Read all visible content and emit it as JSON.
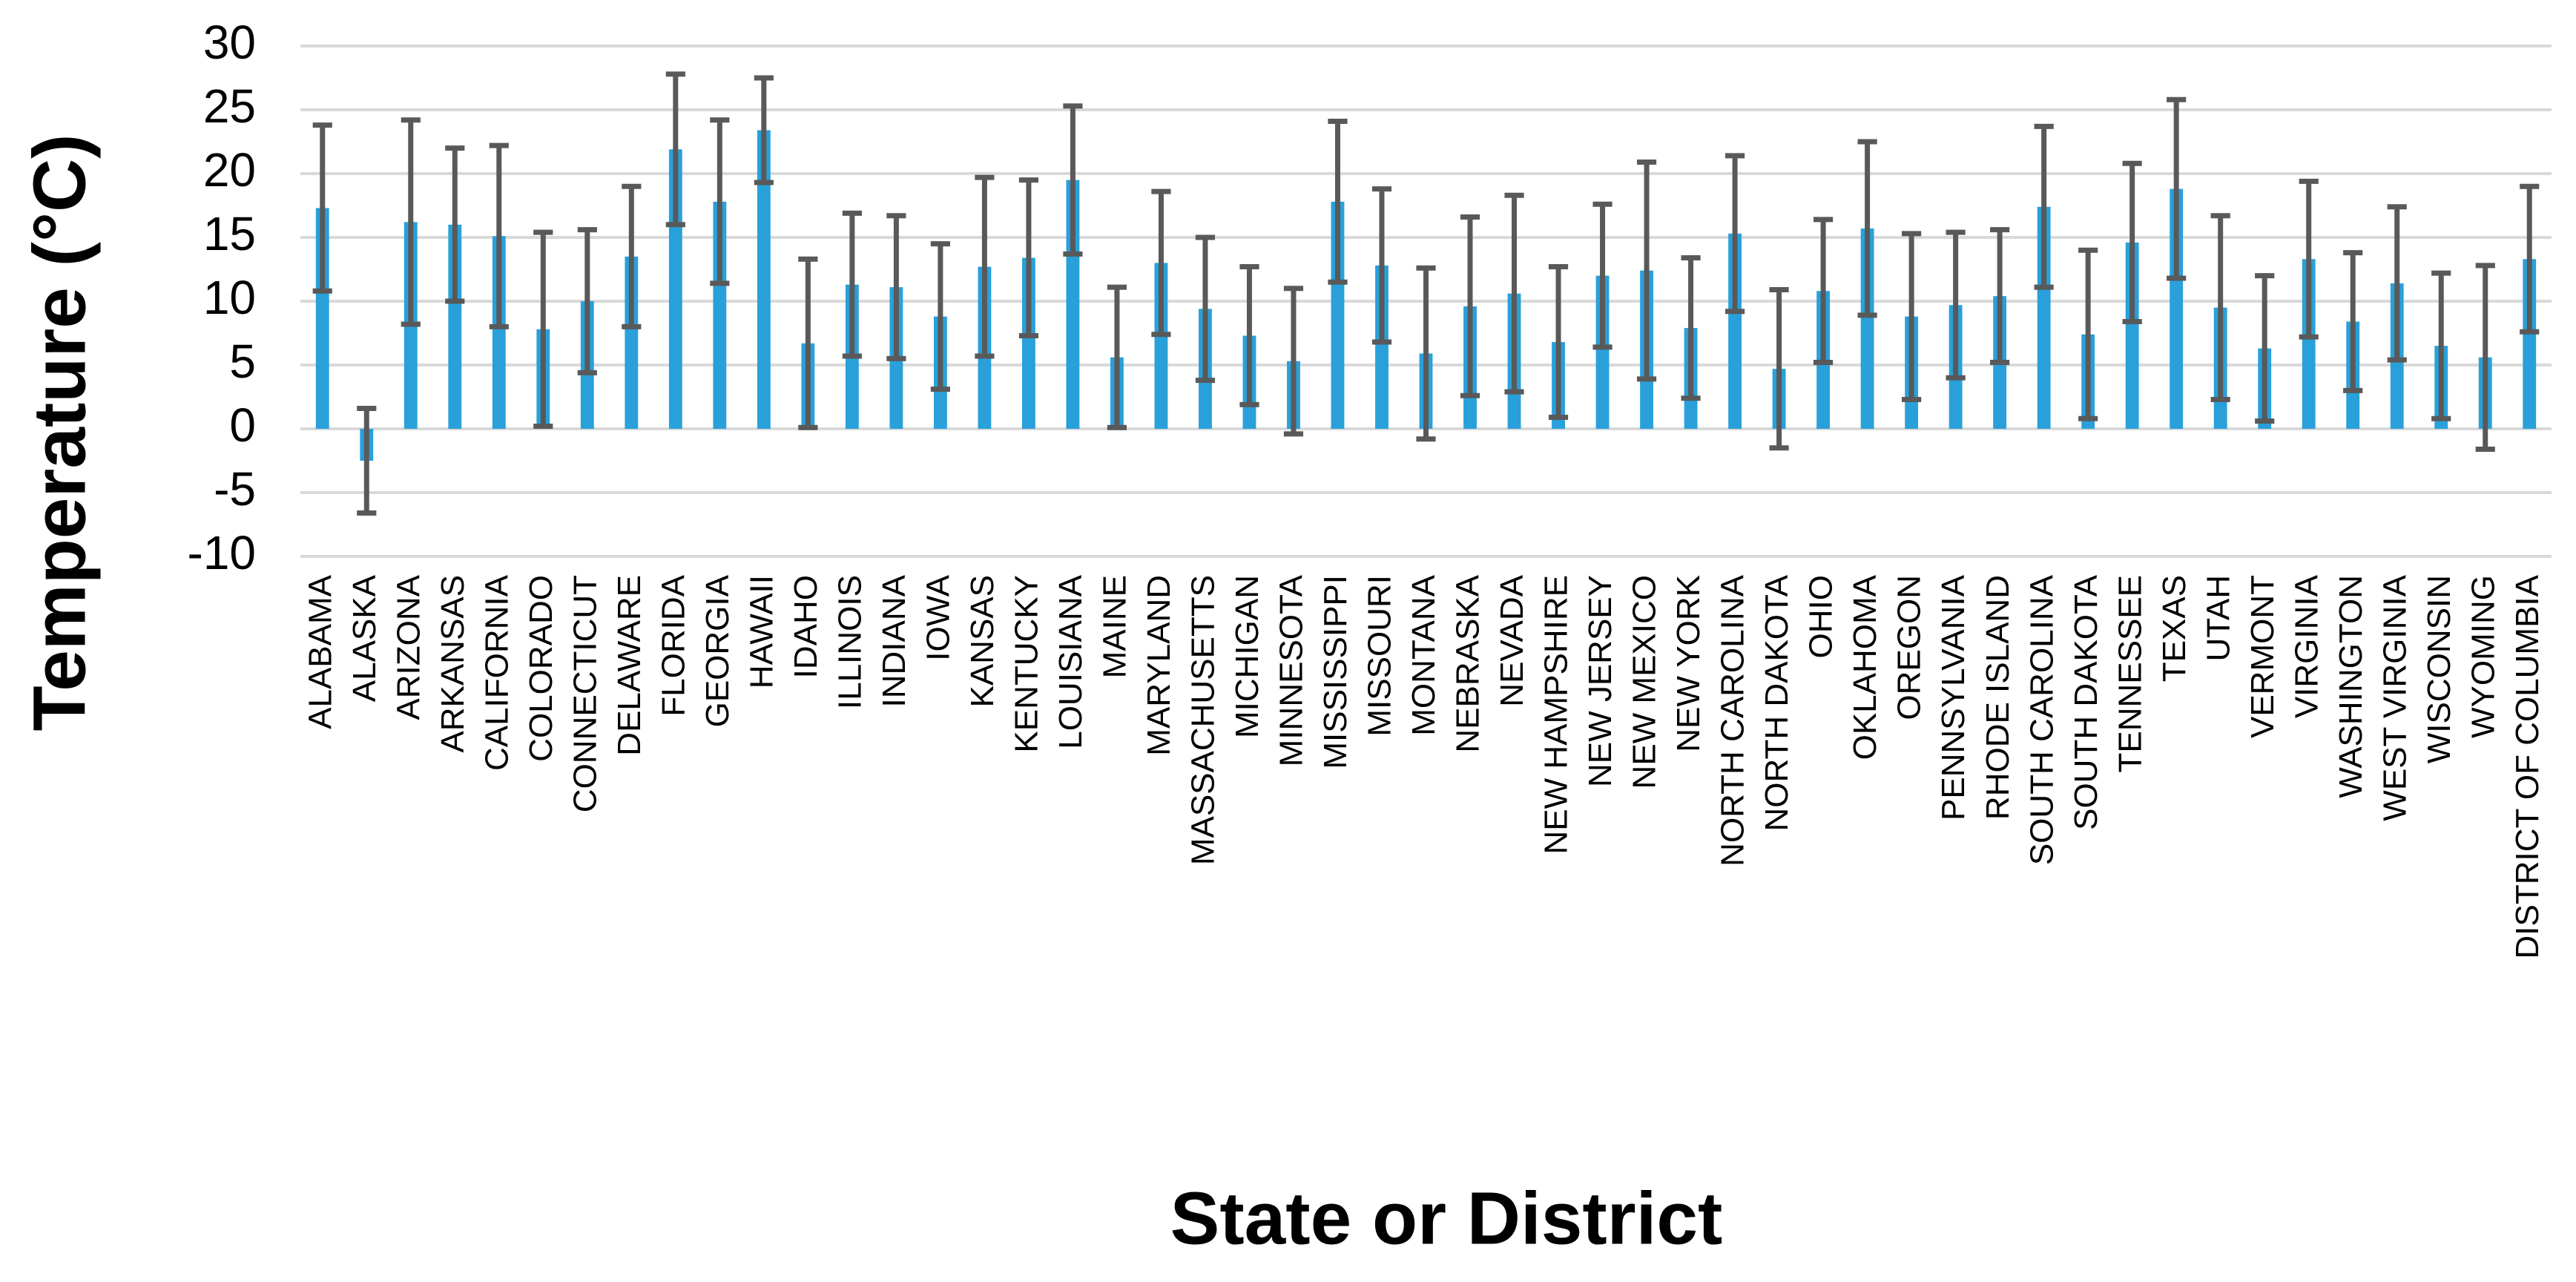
{
  "chart_data": {
    "type": "bar",
    "y_label": "Temperature (°C)",
    "x_label": "State or District",
    "categories": [
      "ALABAMA",
      "ALASKA",
      "ARIZONA",
      "ARKANSAS",
      "CALIFORNIA",
      "COLORADO",
      "CONNECTICUT",
      "DELAWARE",
      "FLORIDA",
      "GEORGIA",
      "HAWAII",
      "IDAHO",
      "ILLINOIS",
      "INDIANA",
      "IOWA",
      "KANSAS",
      "KENTUCKY",
      "LOUISIANA",
      "MAINE",
      "MARYLAND",
      "MASSACHUSETTS",
      "MICHIGAN",
      "MINNESOTA",
      "MISSISSIPPI",
      "MISSOURI",
      "MONTANA",
      "NEBRASKA",
      "NEVADA",
      "NEW HAMPSHIRE",
      "NEW JERSEY",
      "NEW MEXICO",
      "NEW YORK",
      "NORTH CAROLINA",
      "NORTH DAKOTA",
      "OHIO",
      "OKLAHOMA",
      "OREGON",
      "PENNSYLVANIA",
      "RHODE ISLAND",
      "SOUTH CAROLINA",
      "SOUTH DAKOTA",
      "TENNESSEE",
      "TEXAS",
      "UTAH",
      "VERMONT",
      "VIRGINIA",
      "WASHINGTON",
      "WEST VIRGINIA",
      "WISCONSIN",
      "WYOMING",
      "DISTRICT OF COLUMBIA"
    ],
    "values": [
      17.3,
      -2.5,
      16.2,
      16,
      15.1,
      7.8,
      10,
      13.5,
      21.9,
      17.8,
      23.4,
      6.7,
      11.3,
      11.1,
      8.8,
      12.7,
      13.4,
      19.5,
      5.6,
      13,
      9.4,
      7.3,
      5.3,
      17.8,
      12.8,
      5.9,
      9.6,
      10.6,
      6.8,
      12,
      12.4,
      7.9,
      15.3,
      4.7,
      10.8,
      15.7,
      8.8,
      9.7,
      10.4,
      17.4,
      7.4,
      14.6,
      18.8,
      9.5,
      6.3,
      13.3,
      8.4,
      11.4,
      6.5,
      5.6,
      13.3
    ],
    "errors": [
      6.5,
      4.1,
      8,
      6,
      7.1,
      7.6,
      5.6,
      5.5,
      5.9,
      6.4,
      4.1,
      6.6,
      5.6,
      5.6,
      5.7,
      7,
      6.1,
      5.8,
      5.5,
      5.6,
      5.6,
      5.4,
      5.7,
      6.3,
      6,
      6.7,
      7,
      7.7,
      5.9,
      5.6,
      8.5,
      5.5,
      6.1,
      6.2,
      5.6,
      6.8,
      6.5,
      5.7,
      5.2,
      6.3,
      6.6,
      6.2,
      7,
      7.2,
      5.7,
      6.1,
      5.4,
      6,
      5.7,
      7.2,
      5.7
    ],
    "color": "#29a0da",
    "error_color": "#595959",
    "ylim": [
      -10,
      30
    ],
    "yticks": [
      -10,
      -5,
      0,
      5,
      10,
      15,
      20,
      25,
      30
    ],
    "grid": true
  }
}
